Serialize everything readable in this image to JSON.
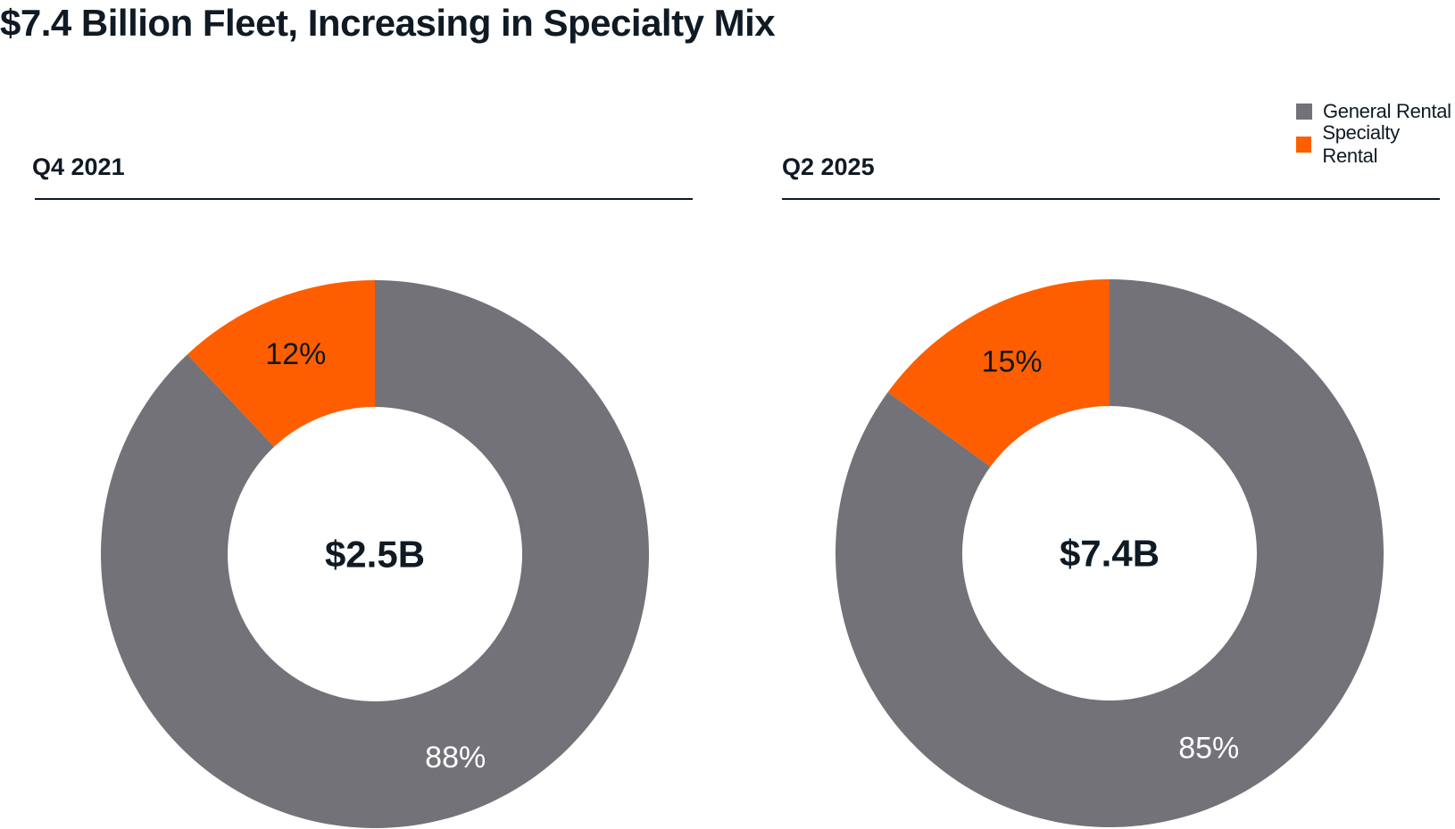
{
  "title": "$7.4 Billion Fleet, Increasing in Specialty Mix",
  "colors": {
    "general": "#727278",
    "specialty": "#ff5e00",
    "text": "#0f1a24"
  },
  "legend": [
    {
      "label": "General Rental",
      "color": "#727278"
    },
    {
      "label": "Specialty Rental",
      "color": "#ff5e00"
    }
  ],
  "chart_data": [
    {
      "type": "pie",
      "title": "Q4 2021",
      "center_label": "$2.5B",
      "categories": [
        "Specialty Rental",
        "General Rental"
      ],
      "values": [
        12,
        88
      ],
      "value_labels": [
        "12%",
        "88%"
      ],
      "colors": [
        "#ff5e00",
        "#727278"
      ],
      "donut": true
    },
    {
      "type": "pie",
      "title": "Q2 2025",
      "center_label": "$7.4B",
      "categories": [
        "Specialty Rental",
        "General Rental"
      ],
      "values": [
        15,
        85
      ],
      "value_labels": [
        "15%",
        "85%"
      ],
      "colors": [
        "#ff5e00",
        "#727278"
      ],
      "donut": true
    }
  ]
}
